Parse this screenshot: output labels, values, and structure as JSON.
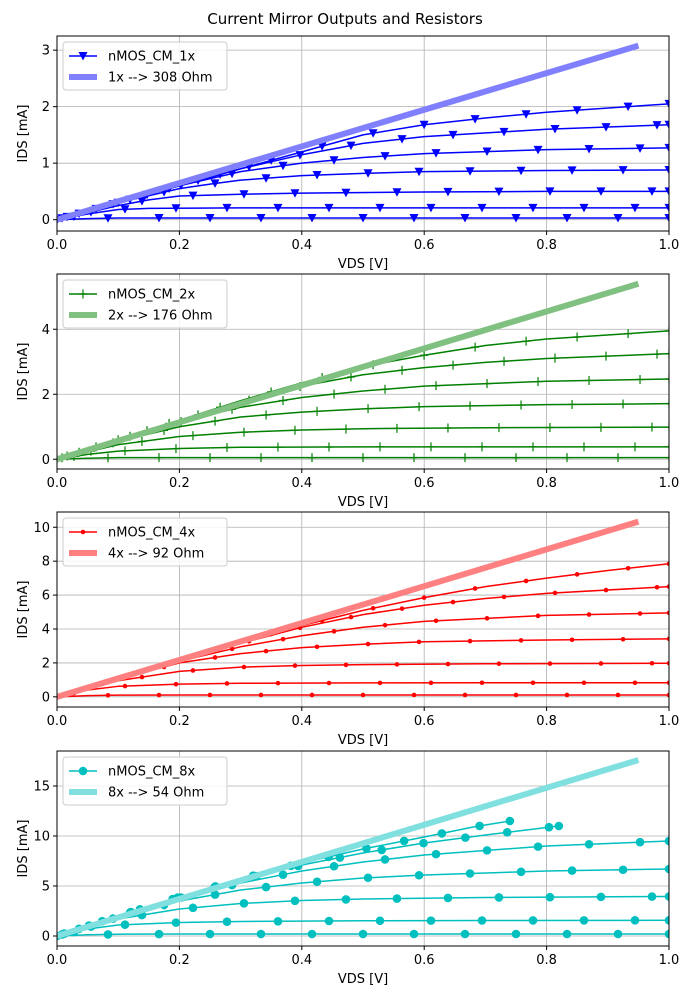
{
  "figure": {
    "title": "Current Mirror Outputs and Resistors",
    "colors": {
      "grid": "#b0b0b0",
      "frame": "#000000"
    }
  },
  "chart_data": [
    {
      "type": "line",
      "xlabel": "VDS [V]",
      "ylabel": "IDS [mA]",
      "xlim": [
        0,
        1.0
      ],
      "ylim": [
        -0.2,
        3.25
      ],
      "xticks": [
        "0.0",
        "0.2",
        "0.4",
        "0.6",
        "0.8",
        "1.0"
      ],
      "xtick_values": [
        0,
        0.2,
        0.4,
        0.6,
        0.8,
        1.0
      ],
      "yticks": [
        "0",
        "1",
        "2",
        "3"
      ],
      "ytick_values": [
        0,
        1,
        2,
        3
      ],
      "grid": true,
      "legend": "top-left",
      "series": [
        {
          "name": "nMOS_CM_1x",
          "color": "#0000ff",
          "marker": "triangle-down",
          "curves": [
            {
              "x": [
                0,
                0.05,
                0.1,
                0.25,
                0.4,
                0.6,
                0.8,
                1.0
              ],
              "y": [
                0,
                0.02,
                0.03,
                0.03,
                0.03,
                0.03,
                0.03,
                0.03
              ]
            },
            {
              "x": [
                0,
                0.05,
                0.1,
                0.15,
                0.3,
                0.5,
                0.7,
                0.9,
                1.0
              ],
              "y": [
                0,
                0.1,
                0.18,
                0.2,
                0.21,
                0.21,
                0.21,
                0.21,
                0.21
              ]
            },
            {
              "x": [
                0,
                0.05,
                0.1,
                0.15,
                0.2,
                0.3,
                0.4,
                0.6,
                0.8,
                1.0
              ],
              "y": [
                0,
                0.12,
                0.25,
                0.35,
                0.42,
                0.45,
                0.47,
                0.49,
                0.5,
                0.5
              ]
            },
            {
              "x": [
                0,
                0.1,
                0.2,
                0.25,
                0.3,
                0.4,
                0.5,
                0.6,
                0.8,
                1.0
              ],
              "y": [
                0,
                0.3,
                0.55,
                0.63,
                0.7,
                0.78,
                0.82,
                0.85,
                0.87,
                0.88
              ]
            },
            {
              "x": [
                0,
                0.1,
                0.2,
                0.3,
                0.4,
                0.5,
                0.6,
                0.8,
                1.0
              ],
              "y": [
                0,
                0.3,
                0.6,
                0.85,
                1.0,
                1.1,
                1.17,
                1.24,
                1.27
              ]
            },
            {
              "x": [
                0,
                0.1,
                0.2,
                0.3,
                0.4,
                0.5,
                0.6,
                0.8,
                1.0
              ],
              "y": [
                0,
                0.3,
                0.6,
                0.9,
                1.15,
                1.35,
                1.47,
                1.6,
                1.68
              ]
            },
            {
              "x": [
                0,
                0.1,
                0.2,
                0.3,
                0.4,
                0.5,
                0.6,
                0.7,
                0.8,
                1.0
              ],
              "y": [
                0,
                0.3,
                0.6,
                0.9,
                1.2,
                1.5,
                1.68,
                1.8,
                1.9,
                2.05
              ]
            }
          ]
        },
        {
          "name": "1x --> 308 Ohm",
          "color": "#8080ff",
          "style": "thick-line",
          "curves": [
            {
              "x": [
                0,
                0.95
              ],
              "y": [
                0,
                3.08
              ]
            }
          ]
        }
      ]
    },
    {
      "type": "line",
      "xlabel": "VDS [V]",
      "ylabel": "IDS [mA]",
      "xlim": [
        0,
        1.0
      ],
      "ylim": [
        -0.3,
        5.7
      ],
      "xticks": [
        "0.0",
        "0.2",
        "0.4",
        "0.6",
        "0.8",
        "1.0"
      ],
      "xtick_values": [
        0,
        0.2,
        0.4,
        0.6,
        0.8,
        1.0
      ],
      "yticks": [
        "0",
        "2",
        "4"
      ],
      "ytick_values": [
        0,
        2,
        4
      ],
      "grid": true,
      "legend": "top-left",
      "series": [
        {
          "name": "nMOS_CM_2x",
          "color": "#008000",
          "marker": "plus",
          "curves": [
            {
              "x": [
                0,
                0.05,
                0.1,
                0.2,
                0.4,
                0.6,
                0.8,
                1.0
              ],
              "y": [
                0,
                0.03,
                0.05,
                0.05,
                0.05,
                0.05,
                0.05,
                0.05
              ]
            },
            {
              "x": [
                0,
                0.05,
                0.1,
                0.2,
                0.3,
                0.5,
                0.7,
                1.0
              ],
              "y": [
                0,
                0.15,
                0.25,
                0.33,
                0.37,
                0.38,
                0.38,
                0.38
              ]
            },
            {
              "x": [
                0,
                0.1,
                0.2,
                0.3,
                0.4,
                0.5,
                0.7,
                1.0
              ],
              "y": [
                0,
                0.45,
                0.7,
                0.83,
                0.9,
                0.94,
                0.97,
                0.99
              ]
            },
            {
              "x": [
                0,
                0.1,
                0.2,
                0.3,
                0.4,
                0.5,
                0.6,
                0.8,
                1.0
              ],
              "y": [
                0,
                0.55,
                1.0,
                1.3,
                1.45,
                1.55,
                1.62,
                1.68,
                1.71
              ]
            },
            {
              "x": [
                0,
                0.1,
                0.2,
                0.3,
                0.4,
                0.5,
                0.6,
                0.8,
                1.0
              ],
              "y": [
                0,
                0.6,
                1.15,
                1.6,
                1.9,
                2.1,
                2.25,
                2.4,
                2.47
              ]
            },
            {
              "x": [
                0,
                0.1,
                0.2,
                0.3,
                0.4,
                0.5,
                0.6,
                0.7,
                0.8,
                1.0
              ],
              "y": [
                0,
                0.6,
                1.2,
                1.75,
                2.25,
                2.6,
                2.82,
                2.98,
                3.1,
                3.25
              ]
            },
            {
              "x": [
                0,
                0.1,
                0.2,
                0.3,
                0.4,
                0.5,
                0.6,
                0.7,
                0.8,
                1.0
              ],
              "y": [
                0,
                0.6,
                1.2,
                1.8,
                2.35,
                2.85,
                3.2,
                3.5,
                3.7,
                3.95
              ]
            }
          ]
        },
        {
          "name": "2x --> 176 Ohm",
          "color": "#80c080",
          "style": "thick-line",
          "curves": [
            {
              "x": [
                0,
                0.95
              ],
              "y": [
                0,
                5.4
              ]
            }
          ]
        }
      ]
    },
    {
      "type": "line",
      "xlabel": "VDS [V]",
      "ylabel": "IDS [mA]",
      "xlim": [
        0,
        1.0
      ],
      "ylim": [
        -0.6,
        10.9
      ],
      "xticks": [
        "0.0",
        "0.2",
        "0.4",
        "0.6",
        "0.8",
        "1.0"
      ],
      "xtick_values": [
        0,
        0.2,
        0.4,
        0.6,
        0.8,
        1.0
      ],
      "yticks": [
        "0",
        "2",
        "4",
        "6",
        "8",
        "10"
      ],
      "ytick_values": [
        0,
        2,
        4,
        6,
        8,
        10
      ],
      "grid": true,
      "legend": "top-left",
      "series": [
        {
          "name": "nMOS_CM_4x",
          "color": "#ff0000",
          "marker": "dot",
          "curves": [
            {
              "x": [
                0,
                0.05,
                0.1,
                0.2,
                0.4,
                0.6,
                0.8,
                1.0
              ],
              "y": [
                0,
                0.07,
                0.1,
                0.11,
                0.11,
                0.11,
                0.11,
                0.11
              ]
            },
            {
              "x": [
                0,
                0.05,
                0.1,
                0.2,
                0.3,
                0.5,
                0.7,
                1.0
              ],
              "y": [
                0,
                0.4,
                0.62,
                0.75,
                0.8,
                0.82,
                0.83,
                0.83
              ]
            },
            {
              "x": [
                0,
                0.1,
                0.2,
                0.3,
                0.4,
                0.5,
                0.7,
                1.0
              ],
              "y": [
                0,
                0.95,
                1.5,
                1.75,
                1.85,
                1.9,
                1.95,
                1.98
              ]
            },
            {
              "x": [
                0,
                0.1,
                0.2,
                0.3,
                0.4,
                0.5,
                0.6,
                0.8,
                1.0
              ],
              "y": [
                0,
                1.05,
                2.0,
                2.55,
                2.9,
                3.1,
                3.25,
                3.35,
                3.42
              ]
            },
            {
              "x": [
                0,
                0.1,
                0.2,
                0.3,
                0.4,
                0.5,
                0.6,
                0.8,
                1.0
              ],
              "y": [
                0,
                1.1,
                2.1,
                2.95,
                3.6,
                4.1,
                4.45,
                4.8,
                4.95
              ]
            },
            {
              "x": [
                0,
                0.1,
                0.2,
                0.3,
                0.4,
                0.5,
                0.6,
                0.7,
                0.8,
                1.0
              ],
              "y": [
                0,
                1.1,
                2.15,
                3.15,
                4.1,
                4.85,
                5.4,
                5.8,
                6.1,
                6.5
              ]
            },
            {
              "x": [
                0,
                0.1,
                0.2,
                0.3,
                0.4,
                0.5,
                0.6,
                0.7,
                0.8,
                0.9,
                1.0
              ],
              "y": [
                0,
                1.1,
                2.15,
                3.2,
                4.2,
                5.1,
                5.85,
                6.5,
                7.0,
                7.45,
                7.85
              ]
            }
          ]
        },
        {
          "name": "4x --> 92 Ohm",
          "color": "#ff8080",
          "style": "thick-line",
          "curves": [
            {
              "x": [
                0,
                0.95
              ],
              "y": [
                0,
                10.33
              ]
            }
          ]
        }
      ]
    },
    {
      "type": "line",
      "xlabel": "VDS [V]",
      "ylabel": "IDS [mA]",
      "xlim": [
        0,
        1.0
      ],
      "ylim": [
        -1.0,
        18.5
      ],
      "xticks": [
        "0.0",
        "0.2",
        "0.4",
        "0.6",
        "0.8",
        "1.0"
      ],
      "xtick_values": [
        0,
        0.2,
        0.4,
        0.6,
        0.8,
        1.0
      ],
      "yticks": [
        "0",
        "5",
        "10",
        "15"
      ],
      "ytick_values": [
        0,
        5,
        10,
        15
      ],
      "grid": true,
      "legend": "top-left",
      "series": [
        {
          "name": "nMOS_CM_8x",
          "color": "#00bfbf",
          "marker": "circle",
          "curves": [
            {
              "x": [
                0,
                0.05,
                0.1,
                0.2,
                0.4,
                0.6,
                0.8,
                1.0
              ],
              "y": [
                0,
                0.12,
                0.18,
                0.2,
                0.2,
                0.2,
                0.2,
                0.2
              ]
            },
            {
              "x": [
                0,
                0.05,
                0.1,
                0.2,
                0.3,
                0.5,
                0.7,
                1.0
              ],
              "y": [
                0,
                0.7,
                1.1,
                1.35,
                1.45,
                1.52,
                1.55,
                1.57
              ]
            },
            {
              "x": [
                0,
                0.1,
                0.2,
                0.3,
                0.4,
                0.5,
                0.7,
                1.0
              ],
              "y": [
                0,
                1.7,
                2.7,
                3.25,
                3.55,
                3.7,
                3.85,
                3.95
              ]
            },
            {
              "x": [
                0,
                0.1,
                0.2,
                0.3,
                0.4,
                0.5,
                0.6,
                0.8,
                1.0
              ],
              "y": [
                0,
                1.9,
                3.5,
                4.6,
                5.3,
                5.8,
                6.1,
                6.5,
                6.7
              ]
            },
            {
              "x": [
                0,
                0.1,
                0.2,
                0.3,
                0.4,
                0.5,
                0.6,
                0.8,
                1.0
              ],
              "y": [
                0,
                2.0,
                3.8,
                5.3,
                6.5,
                7.4,
                8.1,
                9.0,
                9.5
              ]
            },
            {
              "x": [
                0,
                0.1,
                0.2,
                0.3,
                0.4,
                0.5,
                0.6,
                0.7,
                0.82
              ],
              "y": [
                0,
                2.0,
                3.9,
                5.6,
                7.1,
                8.3,
                9.3,
                10.1,
                11.0
              ]
            },
            {
              "x": [
                0,
                0.1,
                0.2,
                0.3,
                0.4,
                0.5,
                0.6,
                0.68,
                0.74
              ],
              "y": [
                0,
                2.0,
                3.9,
                5.7,
                7.3,
                8.7,
                9.9,
                10.9,
                11.5
              ]
            }
          ]
        },
        {
          "name": "8x --> 54 Ohm",
          "color": "#80dfdf",
          "style": "thick-line",
          "curves": [
            {
              "x": [
                0,
                0.95
              ],
              "y": [
                0,
                17.6
              ]
            }
          ]
        }
      ]
    }
  ]
}
